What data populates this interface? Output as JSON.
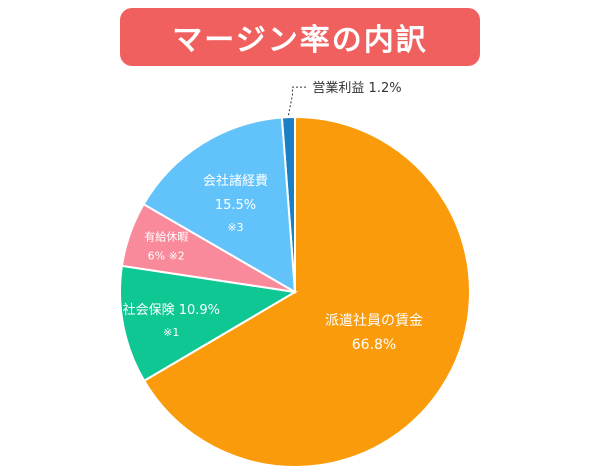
{
  "title": "マージン率の内訳",
  "chart_data": {
    "type": "pie",
    "title": "マージン率の内訳",
    "unit": "%",
    "slices": [
      {
        "name": "営業利益",
        "value": 1.2,
        "value_label": "1.2%",
        "note": "",
        "color": "#1a7fc4"
      },
      {
        "name": "派遣社員の賃金",
        "value": 66.8,
        "value_label": "66.8%",
        "note": "",
        "color": "#f99b0b"
      },
      {
        "name": "社会保険",
        "value": 10.9,
        "value_label": "10.9%",
        "note": "※1",
        "color": "#0ec792"
      },
      {
        "name": "有給休暇",
        "value": 6,
        "value_label": "6%",
        "note": "※2",
        "color": "#f98a9b"
      },
      {
        "name": "会社諸経費",
        "value": 15.5,
        "value_label": "15.5%",
        "note": "※3",
        "color": "#62c3fb"
      }
    ]
  }
}
